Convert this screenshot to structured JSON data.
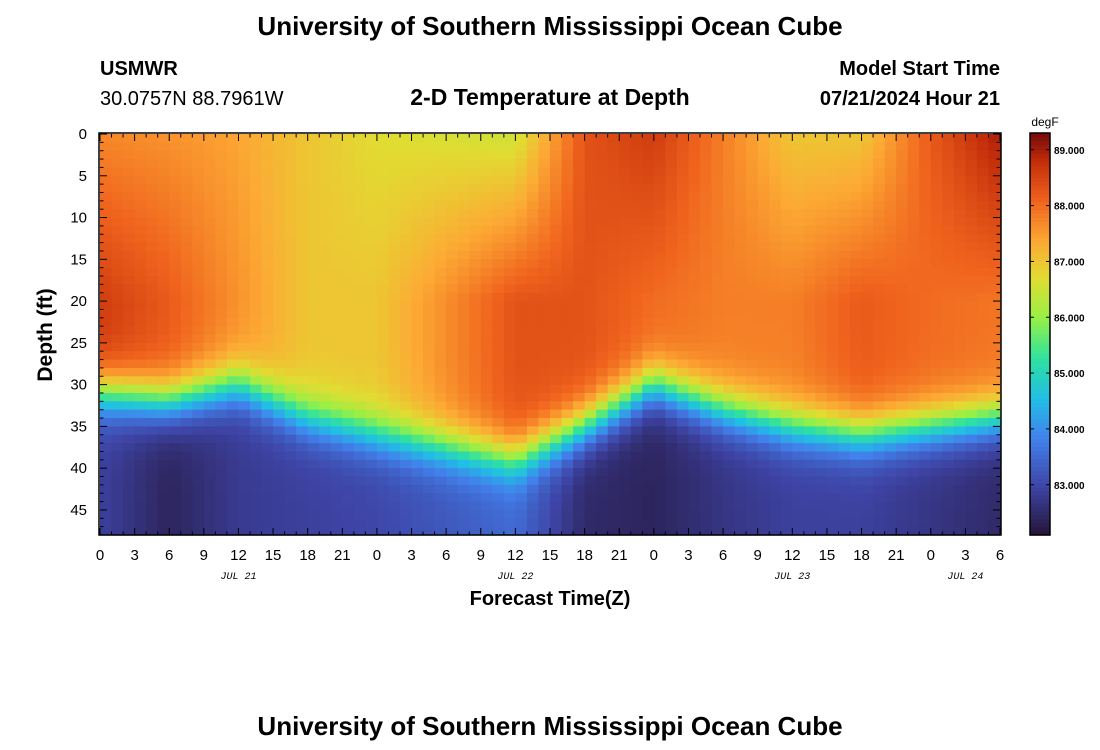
{
  "header": {
    "title": "University of Southern Mississippi Ocean Cube",
    "station": "USMWR",
    "coords": "30.0757N  88.7961W",
    "subtitle": "2-D Temperature at Depth",
    "model_label": "Model Start Time",
    "model_time": "07/21/2024 Hour 21"
  },
  "footer": {
    "title": "University of Southern Mississippi Ocean Cube"
  },
  "chart_data": {
    "type": "heatmap",
    "title": "2-D Temperature at Depth",
    "xlabel": "Forecast Time(Z)",
    "ylabel": "Depth (ft)",
    "x_ticks": [
      "0",
      "3",
      "6",
      "9",
      "12",
      "15",
      "18",
      "21",
      "0",
      "3",
      "6",
      "9",
      "12",
      "15",
      "18",
      "21",
      "0",
      "3",
      "6",
      "9",
      "12",
      "15",
      "18",
      "21",
      "0",
      "3",
      "6"
    ],
    "date_labels": [
      {
        "label": "JUL 21",
        "hour": 12
      },
      {
        "label": "JUL 22",
        "hour": 36
      },
      {
        "label": "JUL 23",
        "hour": 60
      },
      {
        "label": "JUL 24",
        "hour": 75
      }
    ],
    "x_range_hours": [
      0,
      78
    ],
    "y_ticks": [
      "0",
      "5",
      "10",
      "15",
      "20",
      "25",
      "30",
      "35",
      "40",
      "45"
    ],
    "y_range_ft": [
      0,
      48
    ],
    "colorbar": {
      "unit": "degF",
      "min": 82.1,
      "max": 89.3,
      "ticks": [
        "83.000",
        "84.000",
        "85.000",
        "86.000",
        "87.000",
        "88.000",
        "89.000"
      ]
    },
    "profile_hours": [
      0,
      6,
      12,
      18,
      24,
      36,
      42,
      48,
      54,
      60,
      66,
      72,
      78
    ],
    "surface_temp_degF": [
      87.7,
      87.6,
      87.4,
      87.0,
      86.7,
      86.5,
      88.3,
      88.6,
      87.8,
      87.0,
      87.0,
      88.2,
      89.0
    ],
    "midlayer_temp_degF": [
      88.6,
      88.2,
      87.6,
      87.0,
      87.0,
      88.3,
      88.3,
      88.0,
      87.8,
      87.8,
      88.2,
      88.0,
      87.9
    ],
    "thermocline_depth_ft": [
      31,
      32,
      30,
      34,
      36,
      39,
      35,
      30,
      33,
      35,
      36,
      35,
      34
    ],
    "bottom_temp_degF": [
      82.9,
      82.4,
      82.8,
      82.9,
      83.0,
      83.5,
      82.5,
      82.4,
      82.7,
      82.9,
      82.9,
      82.7,
      82.5
    ]
  }
}
